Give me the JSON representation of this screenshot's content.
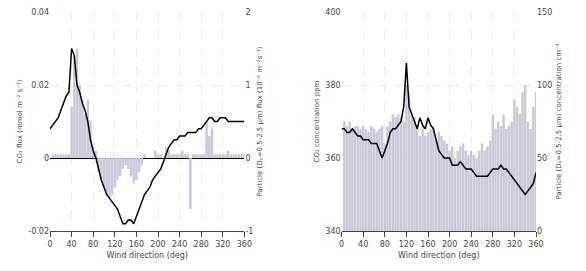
{
  "chart_data": [
    {
      "type": "bar",
      "xlabel": "Wind direction (deg)",
      "ylabel": "CO₂ flux (mmol m⁻² s⁻¹)",
      "y2label": "Particle (Dₚ=0.5-2.5 μm) flux (10⁻⁶ m⁻²s⁻¹)",
      "xlim": [
        0,
        360
      ],
      "xticks": [
        0,
        40,
        80,
        120,
        160,
        200,
        240,
        280,
        320,
        360
      ],
      "ylim": [
        -0.02,
        0.04
      ],
      "yticks": [
        -0.02,
        0,
        0.02,
        0.04
      ],
      "y2lim": [
        -1,
        2
      ],
      "y2ticks": [
        -1,
        0,
        1,
        2
      ],
      "grid": true,
      "series": [
        {
          "type": "bar",
          "axis": "y2",
          "color": "#c8c8d8",
          "x": [
            5,
            10,
            15,
            20,
            25,
            30,
            35,
            40,
            45,
            50,
            55,
            60,
            65,
            70,
            75,
            80,
            85,
            90,
            95,
            100,
            105,
            110,
            115,
            120,
            125,
            130,
            135,
            140,
            145,
            150,
            155,
            160,
            165,
            170,
            175,
            180,
            185,
            190,
            195,
            200,
            205,
            210,
            215,
            220,
            225,
            230,
            235,
            240,
            245,
            250,
            255,
            260,
            265,
            270,
            275,
            280,
            285,
            290,
            295,
            300,
            305,
            310,
            315,
            320,
            325,
            330,
            335,
            340,
            345,
            350,
            355,
            360
          ],
          "values": [
            0.05,
            0.05,
            0.05,
            0.05,
            0.05,
            0.05,
            0.05,
            0.7,
            1.4,
            1.5,
            1.0,
            0.8,
            0.6,
            0.8,
            0.5,
            0.15,
            0.1,
            -0.2,
            -0.3,
            -0.4,
            -0.5,
            -0.55,
            -0.5,
            -0.4,
            -0.3,
            -0.25,
            -0.15,
            -0.1,
            -0.15,
            -0.25,
            -0.35,
            -0.3,
            -0.2,
            -0.1,
            0.05,
            0.0,
            0.0,
            0.0,
            0.1,
            0.05,
            0.05,
            0.0,
            0.15,
            0.1,
            0.05,
            0.05,
            0.05,
            0.05,
            0.1,
            0.05,
            0.05,
            -0.7,
            0.05,
            0.05,
            0.05,
            0.05,
            0.05,
            0.5,
            0.3,
            0.4,
            0.05,
            0.05,
            0.05,
            0.05,
            0.05,
            0.1,
            0.05,
            0.05,
            0.05,
            0.05,
            0.05,
            0.05
          ]
        },
        {
          "type": "line",
          "color": "#000000",
          "x": [
            0,
            5,
            10,
            15,
            20,
            25,
            30,
            35,
            40,
            45,
            50,
            55,
            60,
            65,
            70,
            75,
            80,
            85,
            90,
            95,
            100,
            105,
            110,
            115,
            120,
            125,
            130,
            135,
            140,
            145,
            150,
            155,
            160,
            165,
            170,
            175,
            180,
            185,
            190,
            195,
            200,
            205,
            210,
            215,
            220,
            225,
            230,
            235,
            240,
            245,
            250,
            255,
            260,
            265,
            270,
            275,
            280,
            285,
            290,
            295,
            300,
            305,
            310,
            315,
            320,
            325,
            330,
            335,
            340,
            345,
            350,
            355,
            360
          ],
          "values": [
            0.008,
            0.009,
            0.01,
            0.011,
            0.013,
            0.015,
            0.017,
            0.018,
            0.03,
            0.028,
            0.02,
            0.018,
            0.015,
            0.013,
            0.01,
            0.005,
            0.002,
            0.0,
            -0.003,
            -0.006,
            -0.008,
            -0.01,
            -0.011,
            -0.012,
            -0.013,
            -0.014,
            -0.016,
            -0.018,
            -0.018,
            -0.017,
            -0.017,
            -0.018,
            -0.016,
            -0.014,
            -0.012,
            -0.01,
            -0.009,
            -0.008,
            -0.006,
            -0.005,
            -0.004,
            -0.003,
            -0.001,
            0.001,
            0.003,
            0.004,
            0.005,
            0.005,
            0.006,
            0.006,
            0.006,
            0.007,
            0.007,
            0.007,
            0.007,
            0.008,
            0.008,
            0.009,
            0.01,
            0.011,
            0.011,
            0.01,
            0.01,
            0.011,
            0.011,
            0.011,
            0.01,
            0.01,
            0.01,
            0.01,
            0.01,
            0.01,
            0.01
          ]
        }
      ]
    },
    {
      "type": "bar",
      "xlabel": "Wind direction (deg)",
      "ylabel": "CO₂ concentration ppm",
      "y2label": "Particle (Dₚ=0.5-2.5 μm) concentration cm⁻³",
      "xlim": [
        0,
        360
      ],
      "xticks": [
        0,
        40,
        80,
        120,
        160,
        200,
        240,
        280,
        320,
        360
      ],
      "ylim": [
        340,
        400
      ],
      "yticks": [
        340,
        360,
        380,
        400
      ],
      "y2lim": [
        0,
        150
      ],
      "y2ticks": [
        0,
        50,
        100,
        150
      ],
      "grid": true,
      "series": [
        {
          "type": "bar",
          "axis": "y2",
          "color": "#c8c8d8",
          "x": [
            5,
            10,
            15,
            20,
            25,
            30,
            35,
            40,
            45,
            50,
            55,
            60,
            65,
            70,
            75,
            80,
            85,
            90,
            95,
            100,
            105,
            110,
            115,
            120,
            125,
            130,
            135,
            140,
            145,
            150,
            155,
            160,
            165,
            170,
            175,
            180,
            185,
            190,
            195,
            200,
            205,
            210,
            215,
            220,
            225,
            230,
            235,
            240,
            245,
            250,
            255,
            260,
            265,
            270,
            275,
            280,
            285,
            290,
            295,
            300,
            305,
            310,
            315,
            320,
            325,
            330,
            335,
            340,
            345,
            350,
            355,
            360
          ],
          "values": [
            75,
            72,
            75,
            70,
            72,
            72,
            70,
            72,
            70,
            68,
            72,
            70,
            68,
            70,
            72,
            60,
            72,
            75,
            80,
            78,
            80,
            78,
            75,
            100,
            95,
            80,
            78,
            70,
            65,
            72,
            65,
            68,
            70,
            72,
            62,
            68,
            65,
            62,
            60,
            55,
            58,
            50,
            55,
            58,
            60,
            55,
            52,
            55,
            52,
            50,
            55,
            60,
            55,
            58,
            62,
            80,
            70,
            75,
            72,
            80,
            70,
            72,
            75,
            90,
            85,
            80,
            95,
            100,
            75,
            70,
            85,
            95
          ]
        },
        {
          "type": "line",
          "color": "#000000",
          "x": [
            0,
            5,
            10,
            15,
            20,
            25,
            30,
            35,
            40,
            45,
            50,
            55,
            60,
            65,
            70,
            75,
            80,
            85,
            90,
            95,
            100,
            105,
            110,
            115,
            120,
            125,
            130,
            135,
            140,
            145,
            150,
            155,
            160,
            165,
            170,
            175,
            180,
            185,
            190,
            195,
            200,
            205,
            210,
            215,
            220,
            225,
            230,
            235,
            240,
            245,
            250,
            255,
            260,
            265,
            270,
            275,
            280,
            285,
            290,
            295,
            300,
            305,
            310,
            315,
            320,
            325,
            330,
            335,
            340,
            345,
            350,
            355,
            360
          ],
          "values": [
            368,
            368,
            367,
            367,
            368,
            367,
            366,
            366,
            365,
            365,
            365,
            364,
            364,
            364,
            362,
            360,
            362,
            364,
            367,
            368,
            368,
            369,
            370,
            374,
            386,
            374,
            372,
            370,
            368,
            371,
            369,
            368,
            371,
            369,
            368,
            365,
            362,
            361,
            360,
            360,
            360,
            358,
            358,
            358,
            359,
            358,
            357,
            357,
            357,
            356,
            355,
            355,
            355,
            355,
            355,
            356,
            357,
            357,
            357,
            358,
            357,
            357,
            356,
            355,
            354,
            353,
            352,
            351,
            350,
            351,
            352,
            353,
            356
          ]
        }
      ]
    }
  ]
}
